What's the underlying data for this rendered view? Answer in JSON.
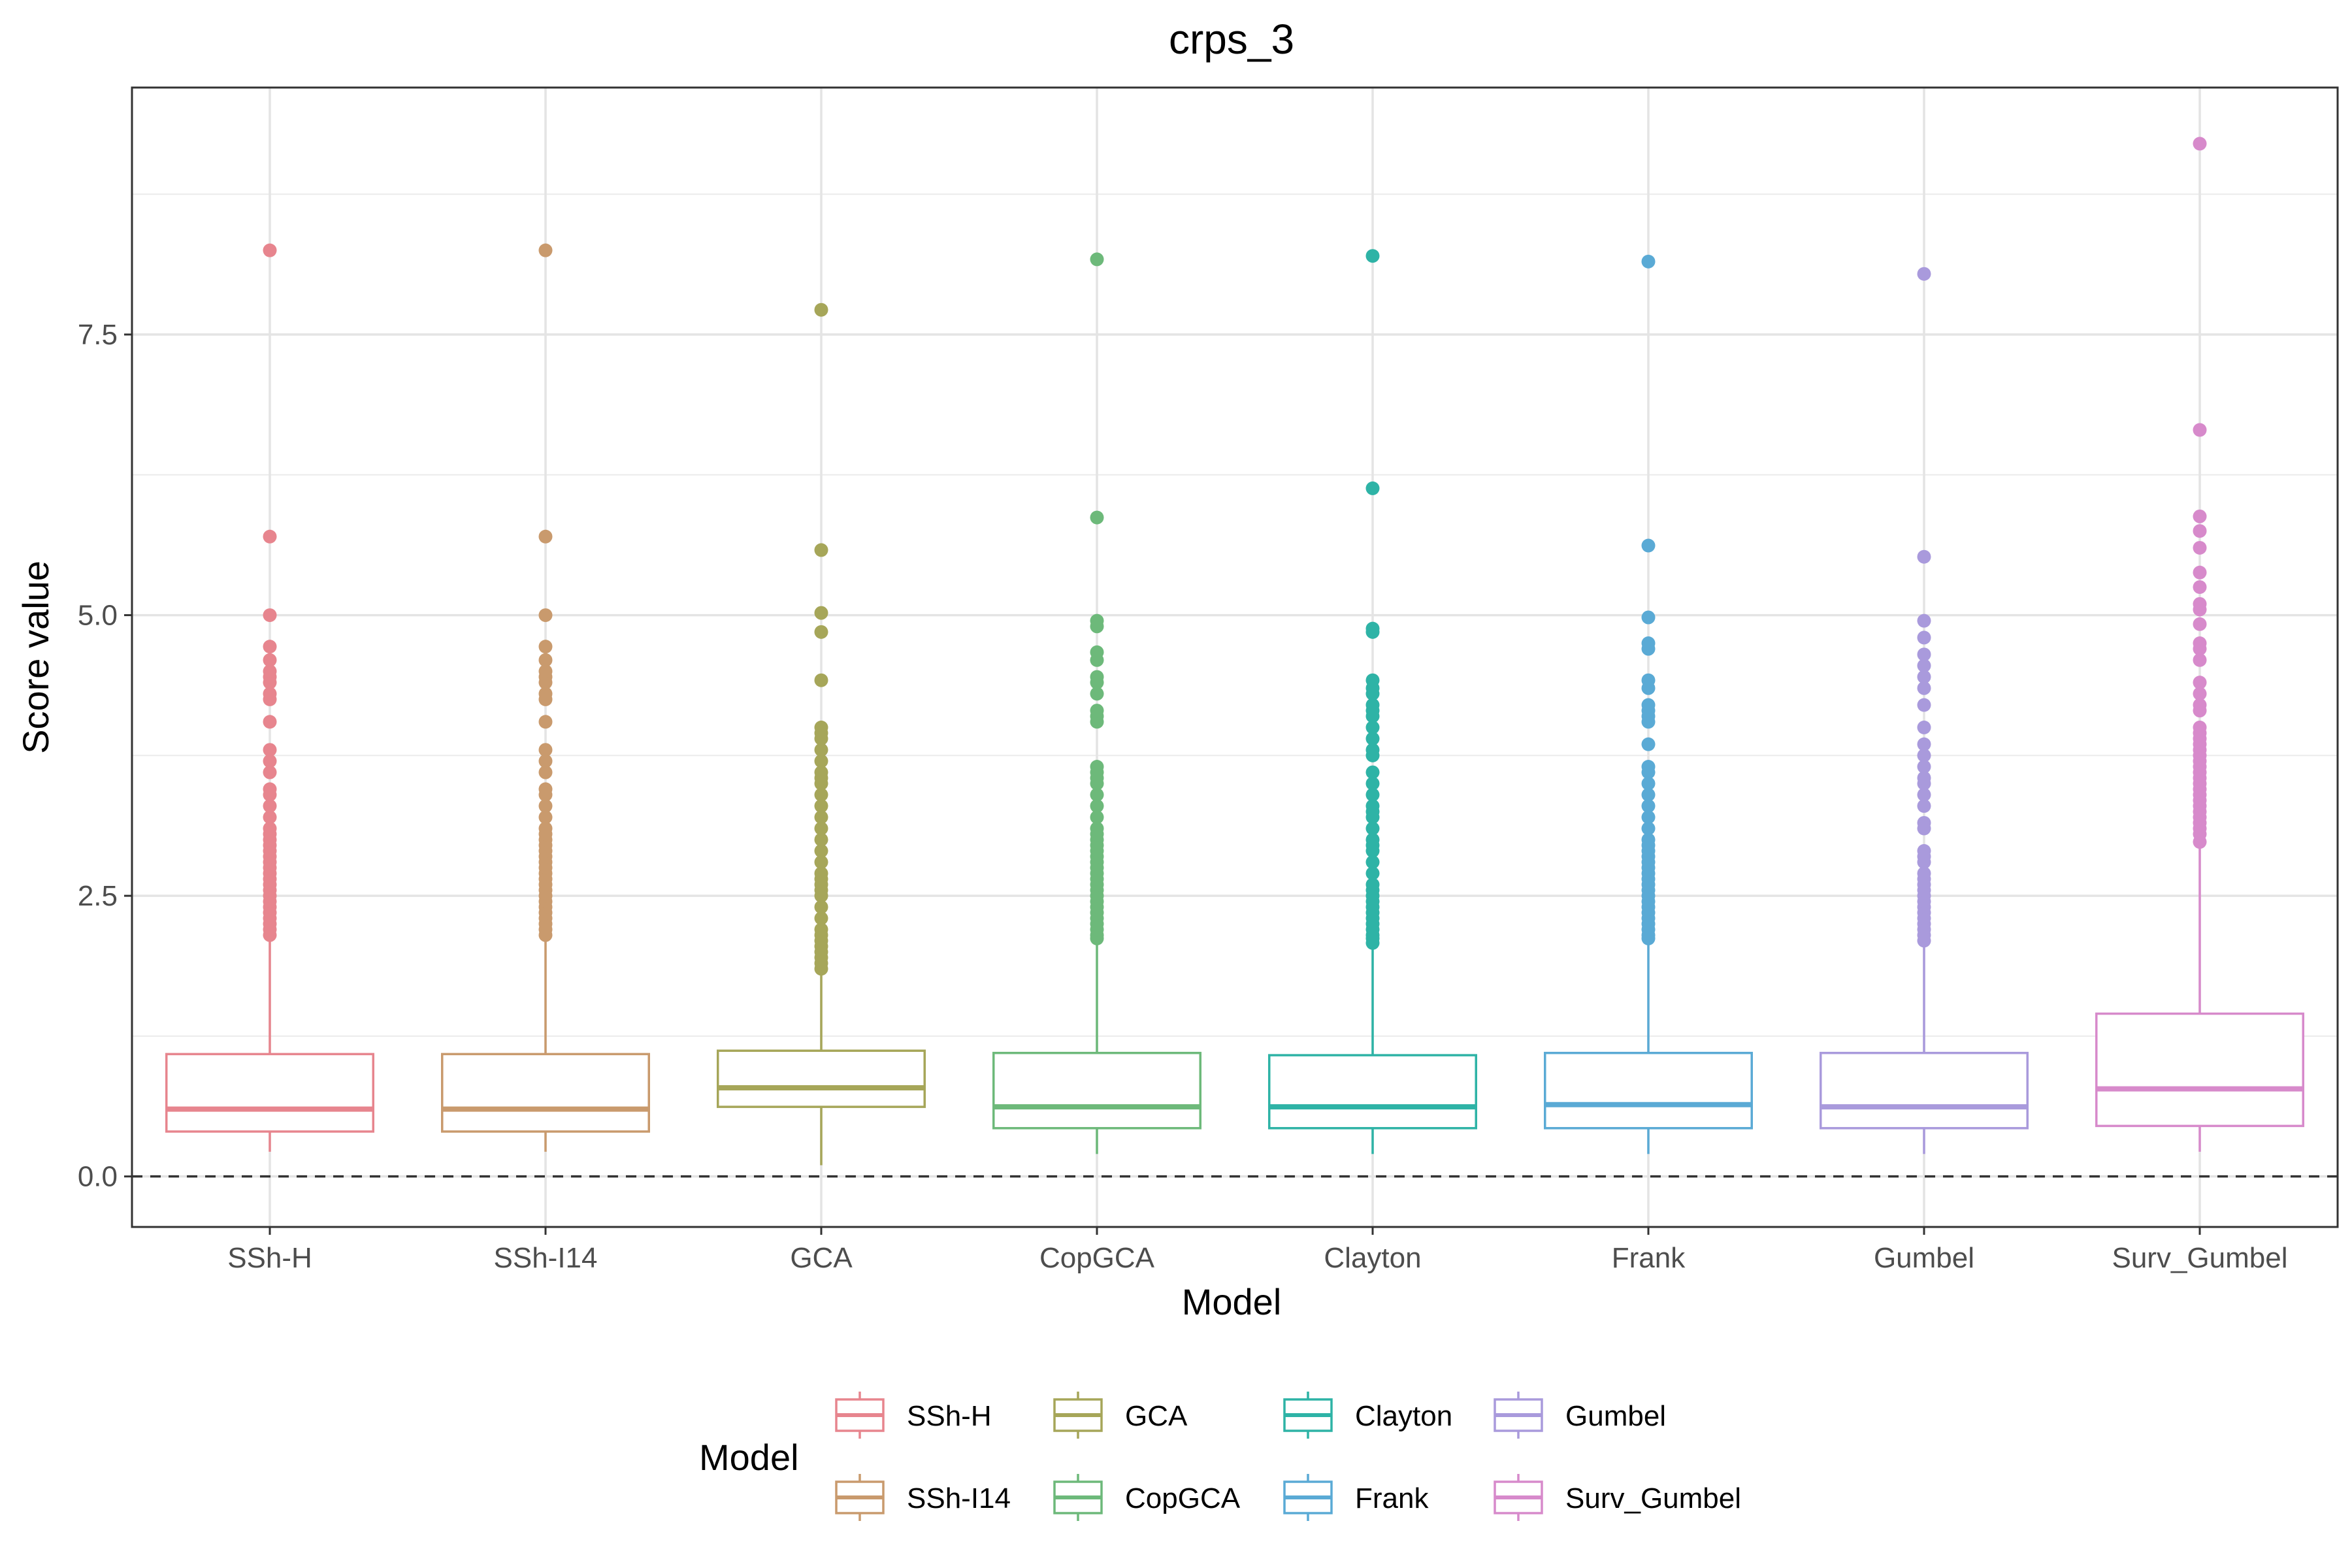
{
  "chart_data": {
    "type": "boxplot",
    "title": "crps_3",
    "xlabel": "Model",
    "ylabel": "Score value",
    "ylim": [
      -0.45,
      9.7
    ],
    "y_ticks": [
      0.0,
      2.5,
      5.0,
      7.5
    ],
    "y_tick_labels": [
      "0.0",
      "2.5",
      "5.0",
      "7.5"
    ],
    "grid": true,
    "reference_line": {
      "y": 0.0,
      "style": "dashed"
    },
    "legend": {
      "title": "Model",
      "position": "bottom"
    },
    "categories": [
      "SSh-H",
      "SSh-I14",
      "GCA",
      "CopGCA",
      "Clayton",
      "Frank",
      "Gumbel",
      "Surv_Gumbel"
    ],
    "series": [
      {
        "name": "SSh-H",
        "color": "#E7858E",
        "min": 0.22,
        "q1": 0.4,
        "median": 0.6,
        "q3": 1.09,
        "max": 2.12,
        "outliers": [
          2.15,
          2.2,
          2.25,
          2.3,
          2.35,
          2.4,
          2.45,
          2.5,
          2.55,
          2.6,
          2.65,
          2.7,
          2.75,
          2.8,
          2.85,
          2.9,
          2.95,
          3.0,
          3.05,
          3.1,
          3.2,
          3.3,
          3.4,
          3.45,
          3.6,
          3.7,
          3.8,
          4.05,
          4.25,
          4.3,
          4.4,
          4.45,
          4.5,
          4.6,
          4.72,
          5.0,
          5.7,
          8.25
        ]
      },
      {
        "name": "SSh-I14",
        "color": "#C99A6D",
        "min": 0.22,
        "q1": 0.4,
        "median": 0.6,
        "q3": 1.09,
        "max": 2.12,
        "outliers": [
          2.15,
          2.2,
          2.25,
          2.3,
          2.35,
          2.4,
          2.45,
          2.5,
          2.55,
          2.6,
          2.65,
          2.7,
          2.75,
          2.8,
          2.85,
          2.9,
          2.95,
          3.0,
          3.05,
          3.1,
          3.2,
          3.3,
          3.4,
          3.45,
          3.6,
          3.7,
          3.8,
          4.05,
          4.25,
          4.3,
          4.4,
          4.45,
          4.5,
          4.6,
          4.72,
          5.0,
          5.7,
          8.25
        ]
      },
      {
        "name": "GCA",
        "color": "#A6A659",
        "min": 0.1,
        "q1": 0.62,
        "median": 0.79,
        "q3": 1.12,
        "max": 1.83,
        "outliers": [
          1.85,
          1.9,
          1.95,
          2.0,
          2.05,
          2.1,
          2.15,
          2.2,
          2.3,
          2.4,
          2.5,
          2.55,
          2.6,
          2.65,
          2.7,
          2.8,
          2.9,
          3.0,
          3.1,
          3.2,
          3.3,
          3.4,
          3.5,
          3.55,
          3.6,
          3.7,
          3.8,
          3.9,
          3.95,
          4.0,
          4.42,
          4.85,
          5.02,
          5.58,
          7.72
        ]
      },
      {
        "name": "CopGCA",
        "color": "#6DB97A",
        "min": 0.2,
        "q1": 0.43,
        "median": 0.62,
        "q3": 1.1,
        "max": 2.1,
        "outliers": [
          2.12,
          2.15,
          2.2,
          2.25,
          2.3,
          2.35,
          2.4,
          2.45,
          2.5,
          2.55,
          2.6,
          2.65,
          2.7,
          2.75,
          2.8,
          2.85,
          2.9,
          2.95,
          3.0,
          3.05,
          3.1,
          3.2,
          3.3,
          3.4,
          3.5,
          3.55,
          3.6,
          3.65,
          4.05,
          4.1,
          4.15,
          4.3,
          4.4,
          4.45,
          4.6,
          4.67,
          4.9,
          4.95,
          5.87,
          8.17
        ]
      },
      {
        "name": "Clayton",
        "color": "#2EB3A6",
        "min": 0.2,
        "q1": 0.43,
        "median": 0.62,
        "q3": 1.08,
        "max": 2.05,
        "outliers": [
          2.08,
          2.12,
          2.15,
          2.2,
          2.25,
          2.3,
          2.35,
          2.4,
          2.45,
          2.5,
          2.55,
          2.6,
          2.7,
          2.8,
          2.9,
          2.95,
          3.0,
          3.1,
          3.2,
          3.25,
          3.3,
          3.4,
          3.5,
          3.6,
          3.75,
          3.8,
          3.9,
          4.0,
          4.1,
          4.15,
          4.2,
          4.3,
          4.35,
          4.42,
          4.85,
          4.88,
          6.13,
          8.2
        ]
      },
      {
        "name": "Frank",
        "color": "#5AAAD5",
        "min": 0.2,
        "q1": 0.43,
        "median": 0.64,
        "q3": 1.1,
        "max": 2.1,
        "outliers": [
          2.12,
          2.15,
          2.2,
          2.25,
          2.3,
          2.35,
          2.4,
          2.45,
          2.5,
          2.55,
          2.6,
          2.65,
          2.7,
          2.75,
          2.8,
          2.85,
          2.9,
          2.95,
          3.0,
          3.1,
          3.2,
          3.3,
          3.4,
          3.5,
          3.6,
          3.65,
          3.85,
          4.05,
          4.1,
          4.15,
          4.2,
          4.35,
          4.42,
          4.7,
          4.75,
          4.98,
          5.62,
          8.15
        ]
      },
      {
        "name": "Gumbel",
        "color": "#A99ADC",
        "min": 0.2,
        "q1": 0.43,
        "median": 0.62,
        "q3": 1.1,
        "max": 2.08,
        "outliers": [
          2.1,
          2.15,
          2.2,
          2.25,
          2.3,
          2.35,
          2.4,
          2.45,
          2.5,
          2.55,
          2.6,
          2.65,
          2.7,
          2.8,
          2.85,
          2.9,
          3.1,
          3.15,
          3.3,
          3.4,
          3.5,
          3.55,
          3.65,
          3.75,
          3.85,
          4.0,
          4.2,
          4.35,
          4.45,
          4.55,
          4.65,
          4.8,
          4.95,
          5.52,
          8.04
        ]
      },
      {
        "name": "Surv_Gumbel",
        "color": "#D78ACB",
        "min": 0.22,
        "q1": 0.45,
        "median": 0.78,
        "q3": 1.45,
        "max": 2.95,
        "outliers": [
          2.98,
          3.05,
          3.1,
          3.15,
          3.2,
          3.25,
          3.3,
          3.35,
          3.4,
          3.45,
          3.5,
          3.55,
          3.6,
          3.65,
          3.7,
          3.75,
          3.8,
          3.85,
          3.9,
          3.95,
          4.0,
          4.15,
          4.2,
          4.3,
          4.4,
          4.6,
          4.7,
          4.75,
          4.92,
          5.05,
          5.1,
          5.25,
          5.38,
          5.6,
          5.75,
          5.88,
          6.65,
          9.2
        ]
      }
    ]
  }
}
